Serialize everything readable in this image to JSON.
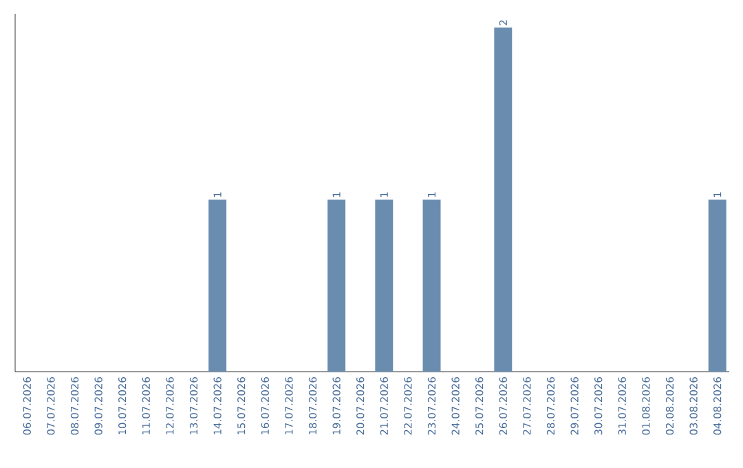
{
  "chart_data": {
    "type": "bar",
    "categories": [
      "06.07.2026",
      "07.07.2026",
      "08.07.2026",
      "09.07.2026",
      "10.07.2026",
      "11.07.2026",
      "12.07.2026",
      "13.07.2026",
      "14.07.2026",
      "15.07.2026",
      "16.07.2026",
      "17.07.2026",
      "18.07.2026",
      "19.07.2026",
      "20.07.2026",
      "21.07.2026",
      "22.07.2026",
      "23.07.2026",
      "24.07.2026",
      "25.07.2026",
      "26.07.2026",
      "27.07.2026",
      "28.07.2026",
      "29.07.2026",
      "30.07.2026",
      "31.07.2026",
      "01.08.2026",
      "02.08.2026",
      "03.08.2026",
      "04.08.2026"
    ],
    "values": [
      0,
      0,
      0,
      0,
      0,
      0,
      0,
      0,
      1,
      0,
      0,
      0,
      0,
      1,
      0,
      1,
      0,
      1,
      0,
      0,
      2,
      0,
      0,
      0,
      0,
      0,
      0,
      0,
      0,
      1
    ],
    "value_labels": [
      null,
      null,
      null,
      null,
      null,
      null,
      null,
      null,
      "1",
      null,
      null,
      null,
      null,
      "1",
      null,
      "1",
      null,
      "1",
      null,
      null,
      "2",
      null,
      null,
      null,
      null,
      null,
      null,
      null,
      null,
      "1"
    ],
    "color": "#6a8caf",
    "ylim": [
      0,
      2.08
    ],
    "tick_labels": "x"
  }
}
